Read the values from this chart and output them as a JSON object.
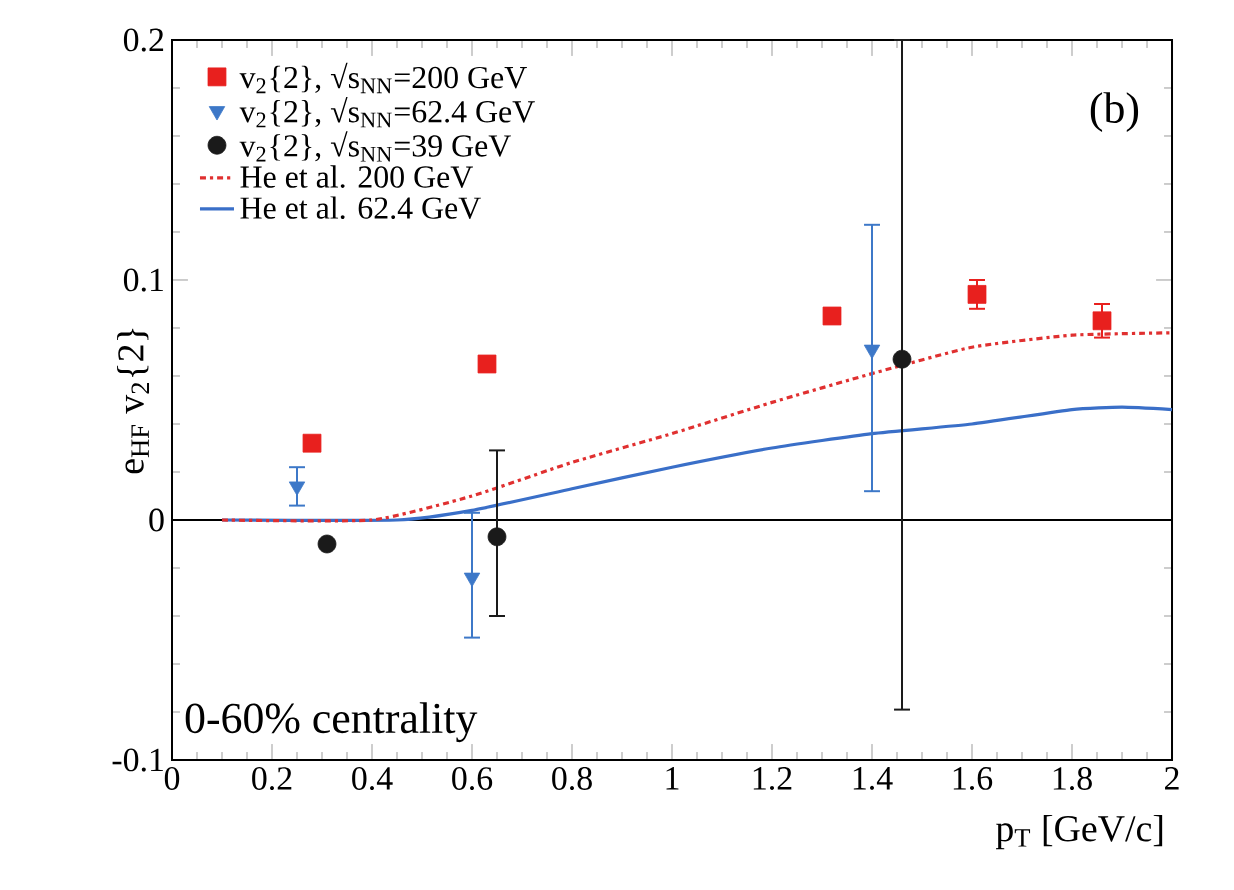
{
  "chart_data": {
    "type": "scatter",
    "xlabel": "p$_{T}$ [GeV/c]",
    "ylabel": "e$_{HF}$ v$_{2}${2}",
    "xlim": [
      0,
      2
    ],
    "ylim": [
      -0.1,
      0.2
    ],
    "xticks": [
      0,
      0.2,
      0.4,
      0.6,
      0.8,
      1,
      1.2,
      1.4,
      1.6,
      1.8,
      2
    ],
    "yticks": [
      -0.1,
      0,
      0.1,
      0.2
    ],
    "legend": "top left",
    "grid": false,
    "ref_lines": [
      {
        "axis": "y",
        "value": 0,
        "color": "#000000",
        "line_style": "solid"
      }
    ],
    "annotations": [
      "(b)",
      "0-60% centrality"
    ],
    "series": [
      {
        "name": "v$_{2}${2}, √s$_{NN}$=200 GeV",
        "marker": "square",
        "color": "#e8201e",
        "x": [
          0.28,
          0.63,
          1.32,
          1.61,
          1.86
        ],
        "values": [
          0.032,
          0.065,
          0.085,
          0.094,
          0.083
        ],
        "errors": [
          null,
          null,
          null,
          0.006,
          0.007
        ]
      },
      {
        "name": "v$_{2}${2}, √s$_{NN}$=62.4 GeV",
        "marker": "triangle",
        "color": "#3d78c8",
        "x": [
          0.25,
          0.6,
          1.4
        ],
        "values": [
          0.014,
          -0.024,
          0.071
        ],
        "errors": [
          0.008,
          [
            -0.049,
            0.003
          ],
          [
            0.012,
            0.123
          ]
        ]
      },
      {
        "name": "v$_{2}${2}, √s$_{NN}$=39 GeV",
        "marker": "circle",
        "color": "#1a1a1a",
        "x": [
          0.31,
          0.65,
          1.46
        ],
        "values": [
          -0.01,
          -0.007,
          0.067
        ],
        "errors": [
          null,
          [
            -0.04,
            0.029
          ],
          [
            -0.079,
            0.2
          ]
        ]
      },
      {
        "name": "He et al. 200 GeV",
        "type": "line",
        "line_style": "dashdot",
        "marker": "none",
        "color": "#e03030",
        "x": [
          0.1,
          0.4,
          0.6,
          0.8,
          1.0,
          1.2,
          1.4,
          1.6,
          1.8,
          2.0
        ],
        "values": [
          0,
          0,
          0.01,
          0.024,
          0.036,
          0.049,
          0.061,
          0.072,
          0.077,
          0.078
        ]
      },
      {
        "name": "He et al. 62.4 GeV",
        "type": "line",
        "line_style": "solid",
        "marker": "none",
        "color": "#3a6fc8",
        "x": [
          0.1,
          0.45,
          0.6,
          0.8,
          1.0,
          1.2,
          1.4,
          1.6,
          1.8,
          1.9,
          2.0
        ],
        "values": [
          0,
          0,
          0.004,
          0.013,
          0.022,
          0.03,
          0.036,
          0.04,
          0.046,
          0.047,
          0.046
        ]
      }
    ]
  }
}
